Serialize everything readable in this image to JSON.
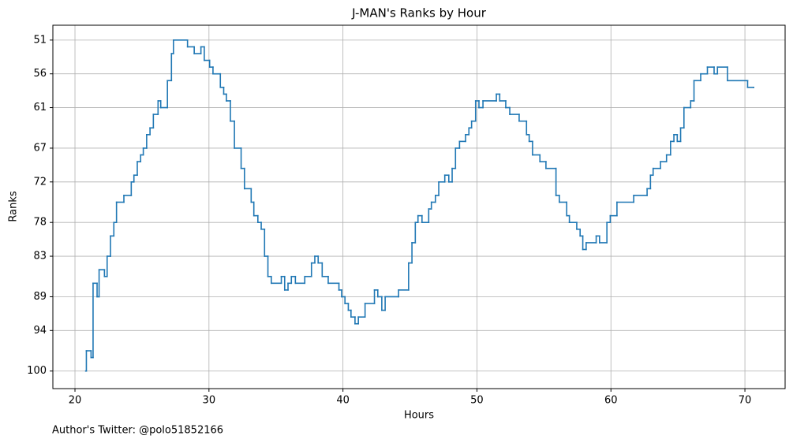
{
  "chart_data": {
    "type": "line",
    "step": "post",
    "title": "J-MAN's Ranks by Hour",
    "xlabel": "Hours",
    "ylabel": "Ranks",
    "footnote": "Author's Twitter: @polo51852166",
    "x": [
      20.8,
      20.85,
      21.2,
      21.35,
      21.65,
      21.8,
      22.2,
      22.4,
      22.65,
      22.9,
      23.1,
      23.65,
      24.2,
      24.4,
      24.65,
      24.9,
      25.1,
      25.35,
      25.6,
      25.85,
      26.2,
      26.4,
      26.9,
      27.2,
      27.35,
      28.4,
      28.9,
      29.4,
      29.65,
      30.05,
      30.3,
      30.85,
      31.1,
      31.3,
      31.6,
      31.9,
      32.4,
      32.65,
      33.15,
      33.35,
      33.65,
      33.9,
      34.15,
      34.4,
      34.65,
      35.4,
      35.65,
      35.9,
      36.15,
      36.45,
      37.15,
      37.65,
      37.9,
      38.15,
      38.45,
      38.9,
      39.7,
      39.9,
      40.15,
      40.4,
      40.6,
      40.9,
      41.15,
      41.65,
      42.35,
      42.6,
      42.9,
      43.15,
      44.15,
      44.9,
      45.15,
      45.4,
      45.6,
      45.9,
      46.4,
      46.6,
      46.9,
      47.15,
      47.6,
      47.9,
      48.15,
      48.4,
      48.7,
      49.15,
      49.4,
      49.6,
      49.9,
      50.15,
      50.45,
      51.45,
      51.7,
      52.15,
      52.45,
      53.15,
      53.7,
      53.9,
      54.15,
      54.7,
      55.15,
      55.9,
      56.15,
      56.7,
      56.9,
      57.45,
      57.7,
      57.9,
      58.15,
      58.9,
      59.15,
      59.7,
      59.95,
      60.45,
      61.7,
      62.7,
      62.95,
      63.15,
      63.7,
      64.15,
      64.45,
      64.7,
      64.95,
      65.2,
      65.45,
      65.95,
      66.2,
      66.7,
      67.2,
      67.7,
      67.95,
      68.7,
      70.2,
      70.65
    ],
    "series": [
      {
        "name": "Ranks",
        "color": "#1f77b4",
        "values": [
          100,
          97,
          98,
          87,
          89,
          85,
          86,
          83,
          80,
          78,
          75,
          74,
          72,
          71,
          69,
          68,
          67,
          65,
          64,
          62,
          60,
          61,
          57,
          53,
          51,
          52,
          53,
          52,
          54,
          55,
          56,
          58,
          59,
          60,
          63,
          67,
          70,
          73,
          75,
          77,
          78,
          79,
          83,
          86,
          87,
          86,
          88,
          87,
          86,
          87,
          86,
          84,
          83,
          84,
          86,
          87,
          88,
          89,
          90,
          91,
          92,
          93,
          92,
          90,
          88,
          89,
          91,
          89,
          88,
          84,
          81,
          78,
          77,
          78,
          76,
          75,
          74,
          72,
          71,
          72,
          70,
          67,
          66,
          65,
          64,
          63,
          60,
          61,
          60,
          59,
          60,
          61,
          62,
          63,
          65,
          66,
          68,
          69,
          70,
          74,
          75,
          77,
          78,
          79,
          80,
          82,
          81,
          80,
          81,
          78,
          77,
          75,
          74,
          73,
          71,
          70,
          69,
          68,
          66,
          65,
          66,
          64,
          61,
          60,
          57,
          56,
          55,
          56,
          55,
          57,
          58,
          58
        ]
      }
    ],
    "xlim": [
      18.35,
      73.0
    ],
    "ylim": [
      102.6,
      48.8
    ],
    "xticks": [
      20,
      30,
      40,
      50,
      60,
      70
    ],
    "yticks": [
      51,
      56,
      61,
      67,
      72,
      78,
      83,
      89,
      94,
      100
    ],
    "grid": true
  }
}
